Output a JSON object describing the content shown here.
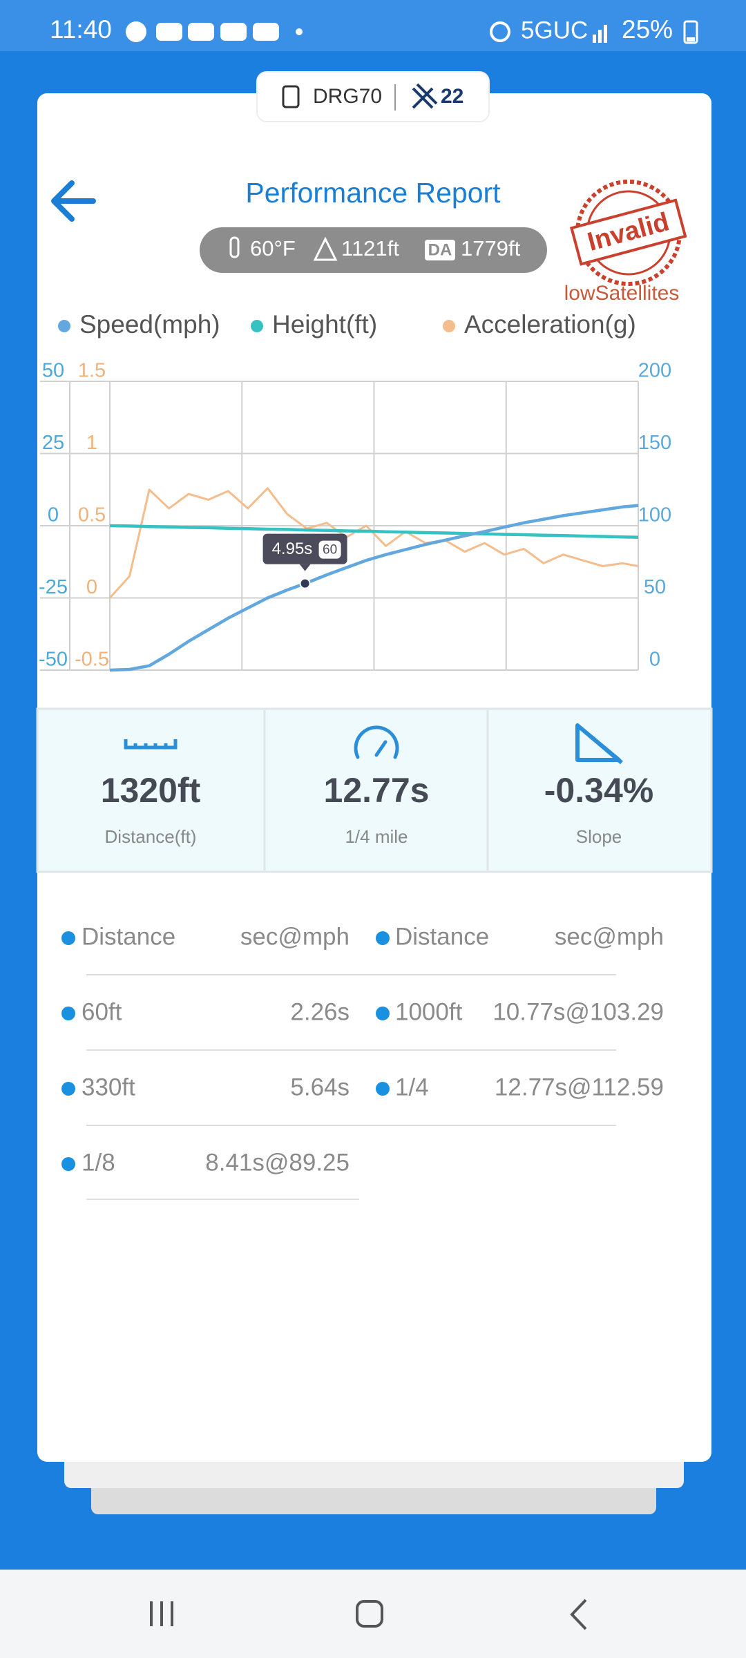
{
  "status_bar": {
    "time": "11:40",
    "network": "5GUC",
    "battery": "25%"
  },
  "device": {
    "name": "DRG70",
    "satellites": "22"
  },
  "header": {
    "title": "Performance Report",
    "temperature": "60°F",
    "elevation": "1121ft",
    "da_badge": "DA",
    "density_altitude": "1779ft",
    "stamp": "Invalid",
    "stamp_reason": "lowSatellites"
  },
  "chart_data": {
    "type": "line",
    "x": [
      0,
      0.5,
      1,
      1.5,
      2,
      2.5,
      3,
      3.5,
      4,
      4.5,
      5,
      5.5,
      6,
      6.5,
      7,
      7.5,
      8,
      8.5,
      9,
      9.5,
      10,
      10.5,
      11,
      11.5,
      12,
      12.5,
      13,
      13.4
    ],
    "xlim": [
      0,
      13.4
    ],
    "xticks": [
      0,
      3.35,
      6.7,
      10.05,
      13.4
    ],
    "ylim": [
      -50,
      50
    ],
    "yticks": [
      -50,
      -25,
      0,
      25,
      50
    ],
    "y2lim": [
      0,
      200
    ],
    "y2ticks": [
      0,
      50,
      100,
      150,
      200
    ],
    "y3lim": [
      -0.5,
      1.5
    ],
    "y3ticks": [
      -0.5,
      0,
      0.5,
      1,
      1.5
    ],
    "grid": true,
    "legend": "top",
    "axis_colors": {
      "y": "#4aa9d9",
      "y2": "#5aa9dd",
      "y3": "#f0b27a"
    },
    "series": [
      {
        "name": "Speed(mph)",
        "color": "#62a8df",
        "axis": "y2",
        "values": [
          0,
          0.5,
          3,
          11,
          20,
          28,
          36,
          43,
          50,
          55.5,
          60.5,
          66,
          71,
          76,
          80,
          83.5,
          87,
          90,
          93,
          96,
          99,
          102,
          104.5,
          107,
          109,
          111,
          113,
          114
        ]
      },
      {
        "name": "Height(ft)",
        "color": "#36c2c2",
        "values": [
          0,
          -0.1,
          -0.3,
          -0.4,
          -0.6,
          -0.7,
          -0.9,
          -1,
          -1.2,
          -1.3,
          -1.5,
          -1.6,
          -1.8,
          -1.9,
          -2.1,
          -2.2,
          -2.4,
          -2.5,
          -2.7,
          -2.8,
          -3,
          -3.1,
          -3.3,
          -3.4,
          -3.6,
          -3.7,
          -3.9,
          -4
        ]
      },
      {
        "name": "Acceleration(g)",
        "color": "#f5bd8c",
        "axis": "y3",
        "values": [
          0,
          0.15,
          0.75,
          0.62,
          0.72,
          0.68,
          0.74,
          0.62,
          0.76,
          0.58,
          0.48,
          0.52,
          0.42,
          0.5,
          0.36,
          0.46,
          0.38,
          0.4,
          0.32,
          0.38,
          0.3,
          0.34,
          0.24,
          0.3,
          0.26,
          0.22,
          0.24,
          0.22
        ]
      }
    ],
    "tooltip": {
      "x": {
        "value": 4.95,
        "label": "4.95s"
      },
      "value": 60
    }
  },
  "stats": [
    {
      "value": "1320ft",
      "label": "Distance(ft)"
    },
    {
      "value": "12.77s",
      "label": "1/4 mile"
    },
    {
      "value": "-0.34%",
      "label": "Slope"
    }
  ],
  "splits": {
    "columns": [
      {
        "header": [
          "Distance",
          "sec@mph"
        ],
        "rows": [
          [
            "60ft",
            "2.26s"
          ],
          [
            "330ft",
            "5.64s"
          ],
          [
            "1/8",
            "8.41s@89.25"
          ]
        ]
      },
      {
        "header": [
          "Distance",
          "sec@mph"
        ],
        "rows": [
          [
            "1000ft",
            "10.77s@103.29"
          ],
          [
            "1/4",
            "12.77s@112.59"
          ]
        ]
      }
    ]
  }
}
